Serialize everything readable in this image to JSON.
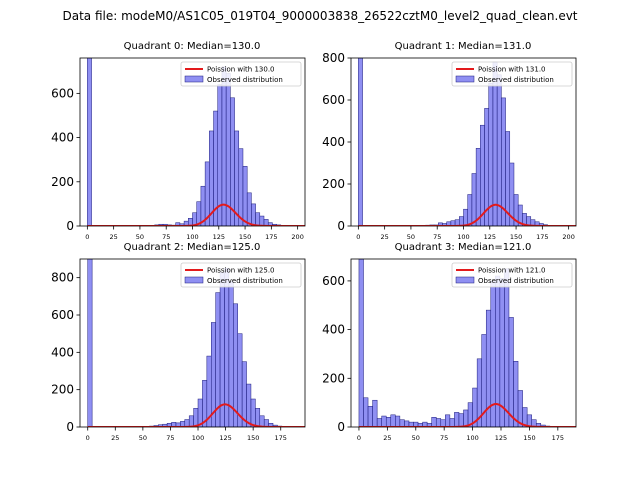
{
  "figure": {
    "suptitle": "Data file: modeM0/AS1C05_019T04_9000003838_26522cztM0_level2_quad_clean.evt"
  },
  "colors": {
    "bar_fill": "#7b7bf0",
    "bar_edge": "#1a1a7a",
    "curve": "#e31a1c",
    "axis": "#000000"
  },
  "chart_data": [
    {
      "type": "bar",
      "title": "Quadrant 0: Median=130.0",
      "bin_width": 4,
      "xlim": [
        -7,
        207
      ],
      "ylim": [
        0,
        760
      ],
      "xticks": [
        0,
        25,
        50,
        75,
        100,
        125,
        150,
        175,
        200
      ],
      "yticks": [
        0,
        200,
        400,
        600
      ],
      "legend": {
        "position": "top-right",
        "curve_label": "Poission with 130.0",
        "hist_label": "Observed distribution"
      },
      "bins": [
        [
          0,
          760
        ],
        [
          4,
          2
        ],
        [
          8,
          1
        ],
        [
          12,
          1
        ],
        [
          16,
          1
        ],
        [
          20,
          1
        ],
        [
          24,
          1
        ],
        [
          28,
          1
        ],
        [
          32,
          1
        ],
        [
          36,
          1
        ],
        [
          40,
          1
        ],
        [
          44,
          1
        ],
        [
          48,
          1
        ],
        [
          52,
          2
        ],
        [
          56,
          2
        ],
        [
          60,
          3
        ],
        [
          64,
          5
        ],
        [
          68,
          8
        ],
        [
          72,
          8
        ],
        [
          76,
          5
        ],
        [
          80,
          4
        ],
        [
          84,
          15
        ],
        [
          88,
          10
        ],
        [
          92,
          22
        ],
        [
          96,
          35
        ],
        [
          100,
          60
        ],
        [
          104,
          110
        ],
        [
          108,
          180
        ],
        [
          112,
          290
        ],
        [
          116,
          430
        ],
        [
          120,
          520
        ],
        [
          124,
          640
        ],
        [
          128,
          720
        ],
        [
          132,
          690
        ],
        [
          136,
          580
        ],
        [
          140,
          430
        ],
        [
          144,
          350
        ],
        [
          148,
          270
        ],
        [
          152,
          150
        ],
        [
          156,
          100
        ],
        [
          160,
          60
        ],
        [
          164,
          45
        ],
        [
          168,
          30
        ],
        [
          172,
          15
        ],
        [
          176,
          8
        ],
        [
          180,
          5
        ],
        [
          184,
          3
        ],
        [
          188,
          2
        ],
        [
          192,
          1
        ],
        [
          196,
          1
        ]
      ],
      "curve": {
        "mu": 130.0,
        "scale": 2760
      }
    },
    {
      "type": "bar",
      "title": "Quadrant 1: Median=131.0",
      "bin_width": 4,
      "xlim": [
        -7,
        207
      ],
      "ylim": [
        0,
        800
      ],
      "xticks": [
        0,
        25,
        50,
        75,
        100,
        125,
        150,
        175,
        200
      ],
      "yticks": [
        0,
        200,
        400,
        600,
        800
      ],
      "legend": {
        "position": "top-right",
        "curve_label": "Poission with 131.0",
        "hist_label": "Observed distribution"
      },
      "bins": [
        [
          0,
          800
        ],
        [
          4,
          2
        ],
        [
          8,
          1
        ],
        [
          12,
          1
        ],
        [
          16,
          1
        ],
        [
          20,
          1
        ],
        [
          24,
          1
        ],
        [
          28,
          1
        ],
        [
          32,
          1
        ],
        [
          36,
          1
        ],
        [
          40,
          1
        ],
        [
          44,
          1
        ],
        [
          48,
          1
        ],
        [
          52,
          2
        ],
        [
          56,
          2
        ],
        [
          60,
          3
        ],
        [
          64,
          4
        ],
        [
          68,
          5
        ],
        [
          72,
          5
        ],
        [
          76,
          15
        ],
        [
          80,
          12
        ],
        [
          84,
          20
        ],
        [
          88,
          25
        ],
        [
          92,
          30
        ],
        [
          96,
          45
        ],
        [
          100,
          80
        ],
        [
          104,
          150
        ],
        [
          108,
          250
        ],
        [
          112,
          370
        ],
        [
          116,
          480
        ],
        [
          120,
          560
        ],
        [
          124,
          680
        ],
        [
          128,
          780
        ],
        [
          132,
          720
        ],
        [
          136,
          610
        ],
        [
          140,
          450
        ],
        [
          144,
          300
        ],
        [
          148,
          150
        ],
        [
          152,
          100
        ],
        [
          156,
          60
        ],
        [
          160,
          45
        ],
        [
          164,
          30
        ],
        [
          168,
          20
        ],
        [
          172,
          12
        ],
        [
          176,
          6
        ],
        [
          180,
          3
        ],
        [
          184,
          2
        ],
        [
          188,
          1
        ],
        [
          192,
          1
        ],
        [
          196,
          1
        ]
      ],
      "curve": {
        "mu": 131.0,
        "scale": 2900
      }
    },
    {
      "type": "bar",
      "title": "Quadrant 2: Median=125.0",
      "bin_width": 4,
      "xlim": [
        -7,
        197
      ],
      "ylim": [
        0,
        900
      ],
      "xticks": [
        0,
        25,
        50,
        75,
        100,
        125,
        150,
        175
      ],
      "yticks": [
        0,
        200,
        400,
        600,
        800
      ],
      "legend": {
        "position": "top-right",
        "curve_label": "Poission with 125.0",
        "hist_label": "Observed distribution"
      },
      "bins": [
        [
          0,
          900
        ],
        [
          4,
          2
        ],
        [
          8,
          1
        ],
        [
          12,
          1
        ],
        [
          16,
          1
        ],
        [
          20,
          1
        ],
        [
          24,
          1
        ],
        [
          28,
          1
        ],
        [
          32,
          1
        ],
        [
          36,
          1
        ],
        [
          40,
          1
        ],
        [
          44,
          1
        ],
        [
          48,
          2
        ],
        [
          52,
          3
        ],
        [
          56,
          5
        ],
        [
          60,
          8
        ],
        [
          64,
          12
        ],
        [
          68,
          15
        ],
        [
          72,
          20
        ],
        [
          76,
          25
        ],
        [
          80,
          22
        ],
        [
          84,
          30
        ],
        [
          88,
          40
        ],
        [
          92,
          60
        ],
        [
          96,
          100
        ],
        [
          100,
          150
        ],
        [
          104,
          250
        ],
        [
          108,
          380
        ],
        [
          112,
          560
        ],
        [
          116,
          720
        ],
        [
          120,
          830
        ],
        [
          124,
          850
        ],
        [
          128,
          780
        ],
        [
          132,
          660
        ],
        [
          136,
          500
        ],
        [
          140,
          350
        ],
        [
          144,
          230
        ],
        [
          148,
          150
        ],
        [
          152,
          100
        ],
        [
          156,
          60
        ],
        [
          160,
          40
        ],
        [
          164,
          20
        ],
        [
          168,
          10
        ],
        [
          172,
          5
        ],
        [
          176,
          3
        ],
        [
          180,
          2
        ],
        [
          184,
          1
        ]
      ],
      "curve": {
        "mu": 125.0,
        "scale": 3400
      }
    },
    {
      "type": "bar",
      "title": "Quadrant 3: Median=121.0",
      "bin_width": 4,
      "xlim": [
        -7,
        191
      ],
      "ylim": [
        0,
        690
      ],
      "xticks": [
        0,
        25,
        50,
        75,
        100,
        125,
        150,
        175
      ],
      "yticks": [
        0,
        200,
        400,
        600
      ],
      "legend": {
        "position": "top-right",
        "curve_label": "Poission with 121.0",
        "hist_label": "Observed distribution"
      },
      "bins": [
        [
          0,
          690
        ],
        [
          4,
          120
        ],
        [
          8,
          85
        ],
        [
          12,
          110
        ],
        [
          16,
          35
        ],
        [
          20,
          45
        ],
        [
          24,
          40
        ],
        [
          28,
          50
        ],
        [
          32,
          45
        ],
        [
          36,
          30
        ],
        [
          40,
          25
        ],
        [
          44,
          20
        ],
        [
          48,
          20
        ],
        [
          52,
          15
        ],
        [
          56,
          20
        ],
        [
          60,
          15
        ],
        [
          64,
          40
        ],
        [
          68,
          35
        ],
        [
          72,
          30
        ],
        [
          76,
          50
        ],
        [
          80,
          35
        ],
        [
          84,
          60
        ],
        [
          88,
          55
        ],
        [
          92,
          70
        ],
        [
          96,
          100
        ],
        [
          100,
          160
        ],
        [
          104,
          280
        ],
        [
          108,
          380
        ],
        [
          112,
          480
        ],
        [
          116,
          600
        ],
        [
          120,
          620
        ],
        [
          124,
          610
        ],
        [
          128,
          650
        ],
        [
          132,
          450
        ],
        [
          136,
          270
        ],
        [
          140,
          150
        ],
        [
          144,
          80
        ],
        [
          148,
          50
        ],
        [
          152,
          30
        ],
        [
          156,
          15
        ],
        [
          160,
          8
        ],
        [
          164,
          4
        ],
        [
          168,
          2
        ],
        [
          172,
          1
        ]
      ],
      "curve": {
        "mu": 121.0,
        "scale": 2600
      }
    }
  ]
}
